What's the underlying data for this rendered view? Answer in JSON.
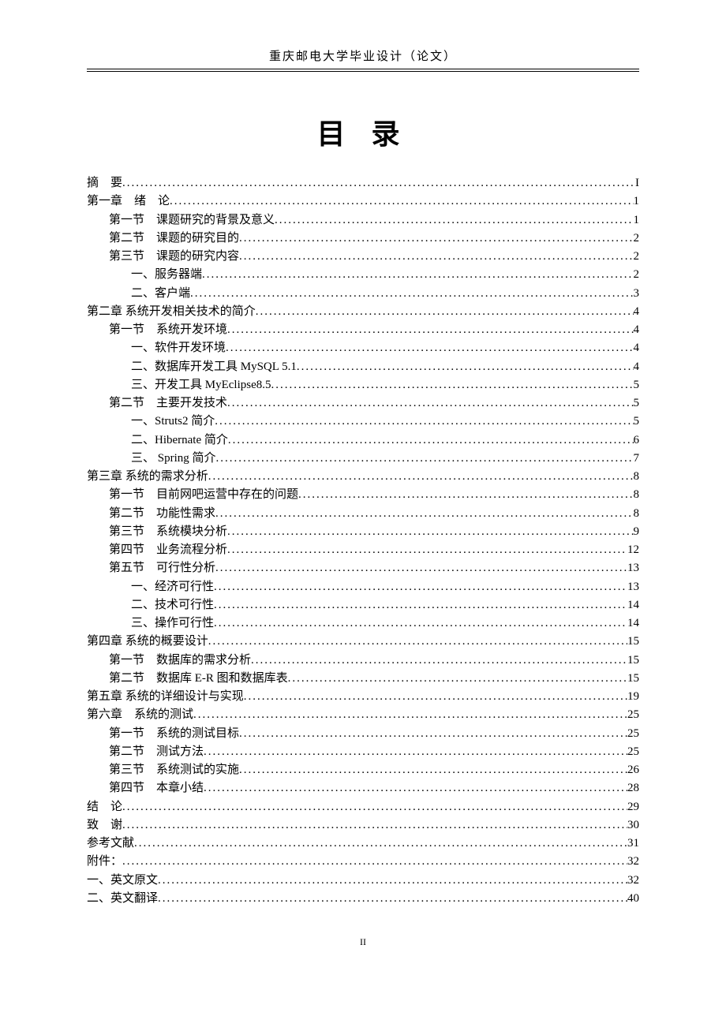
{
  "header": "重庆邮电大学毕业设计（论文）",
  "title": "目 录",
  "footer": "II",
  "toc": [
    {
      "level": 0,
      "label": "摘　要",
      "page": "I"
    },
    {
      "level": 0,
      "label": "第一章　绪　论",
      "page": "1"
    },
    {
      "level": 1,
      "label": "第一节　课题研究的背景及意义",
      "page": "1"
    },
    {
      "level": 1,
      "label": "第二节　课题的研究目的",
      "page": "2"
    },
    {
      "level": 1,
      "label": "第三节　课题的研究内容",
      "page": "2"
    },
    {
      "level": 2,
      "label": "一、服务器端",
      "page": "2"
    },
    {
      "level": 2,
      "label": "二、客户端",
      "page": "3"
    },
    {
      "level": 0,
      "label": "第二章  系统开发相关技术的简介",
      "page": "4"
    },
    {
      "level": 1,
      "label": "第一节　系统开发环境",
      "page": "4"
    },
    {
      "level": 2,
      "label": "一、软件开发环境",
      "page": "4"
    },
    {
      "level": 2,
      "label": "二、数据库开发工具 MySQL 5.1",
      "page": "4"
    },
    {
      "level": 2,
      "label": "三、开发工具 MyEclipse8.5",
      "page": "5"
    },
    {
      "level": 1,
      "label": "第二节　主要开发技术",
      "page": "5"
    },
    {
      "level": 2,
      "label": "一、Struts2 简介",
      "page": "5"
    },
    {
      "level": 2,
      "label": "二、Hibernate 简介",
      "page": "6"
    },
    {
      "level": 2,
      "label": "三、 Spring 简介",
      "page": "7"
    },
    {
      "level": 0,
      "label": "第三章  系统的需求分析",
      "page": "8"
    },
    {
      "level": 1,
      "label": "第一节　目前网吧运营中存在的问题",
      "page": "8"
    },
    {
      "level": 1,
      "label": "第二节　功能性需求",
      "page": "8"
    },
    {
      "level": 1,
      "label": "第三节　系统模块分析",
      "page": "9"
    },
    {
      "level": 1,
      "label": "第四节　业务流程分析",
      "page": "12"
    },
    {
      "level": 1,
      "label": "第五节　可行性分析",
      "page": "13"
    },
    {
      "level": 2,
      "label": "一、经济可行性",
      "page": "13"
    },
    {
      "level": 2,
      "label": "二、技术可行性",
      "page": "14"
    },
    {
      "level": 2,
      "label": "三、操作可行性",
      "page": "14"
    },
    {
      "level": 0,
      "label": "第四章  系统的概要设计",
      "page": "15"
    },
    {
      "level": 1,
      "label": "第一节　数据库的需求分析",
      "page": "15"
    },
    {
      "level": 1,
      "label": "第二节　数据库 E-R 图和数据库表",
      "page": "15"
    },
    {
      "level": 0,
      "label": "第五章  系统的详细设计与实现",
      "page": "19"
    },
    {
      "level": 0,
      "label": "第六章　系统的测试",
      "page": "25"
    },
    {
      "level": 1,
      "label": "第一节　系统的测试目标",
      "page": "25"
    },
    {
      "level": 1,
      "label": "第二节　测试方法",
      "page": "25"
    },
    {
      "level": 1,
      "label": "第三节　系统测试的实施",
      "page": "26"
    },
    {
      "level": 1,
      "label": "第四节　本章小结",
      "page": "28"
    },
    {
      "level": 0,
      "label": "结　论",
      "page": "29"
    },
    {
      "level": 0,
      "label": "致　谢",
      "page": "30"
    },
    {
      "level": 0,
      "label": "参考文献",
      "page": "31"
    },
    {
      "level": 0,
      "label": "附件：",
      "page": "32"
    },
    {
      "level": 0,
      "label": "一、英文原文",
      "page": "32"
    },
    {
      "level": 0,
      "label": "二、英文翻译",
      "page": "40"
    }
  ]
}
